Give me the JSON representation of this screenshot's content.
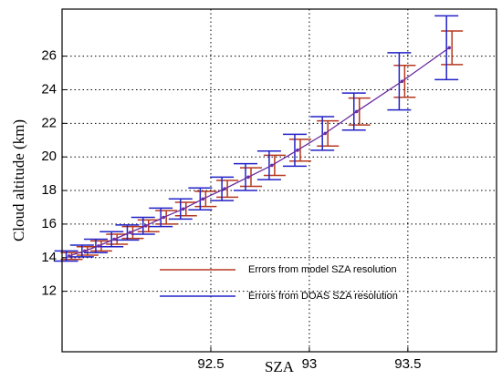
{
  "chart_data": {
    "type": "errorbar",
    "xlabel": "SZA",
    "ylabel": "Cloud altitude (km)",
    "x": [
      91.78,
      91.86,
      91.93,
      92.01,
      92.09,
      92.17,
      92.26,
      92.36,
      92.46,
      92.57,
      92.69,
      92.81,
      92.94,
      93.08,
      93.24,
      93.47,
      93.71
    ],
    "values": [
      14.1,
      14.4,
      14.7,
      15.1,
      15.5,
      15.9,
      16.4,
      16.9,
      17.5,
      18.1,
      18.8,
      19.5,
      20.4,
      21.4,
      22.7,
      24.5,
      26.5
    ],
    "line_color": "#6a2aa0",
    "series": [
      {
        "name": "Errors from model SZA resolution",
        "color": "#b5381e",
        "errors": [
          0.2,
          0.25,
          0.3,
          0.3,
          0.35,
          0.35,
          0.4,
          0.4,
          0.45,
          0.5,
          0.55,
          0.6,
          0.65,
          0.75,
          0.8,
          0.95,
          1.0
        ]
      },
      {
        "name": "Errors from DOAS SZA resolution",
        "color": "#2222c8",
        "errors": [
          0.3,
          0.35,
          0.4,
          0.45,
          0.45,
          0.5,
          0.55,
          0.6,
          0.65,
          0.7,
          0.8,
          0.85,
          0.95,
          1.0,
          1.1,
          1.7,
          1.9
        ]
      }
    ],
    "xlim": [
      91.745,
      93.95
    ],
    "ylim": [
      8.4,
      28.8
    ],
    "xticks": [
      92.5,
      93,
      93.5
    ],
    "yticks": [
      12,
      14,
      16,
      18,
      20,
      22,
      24,
      26
    ],
    "grid": true,
    "legend": "lower right"
  }
}
